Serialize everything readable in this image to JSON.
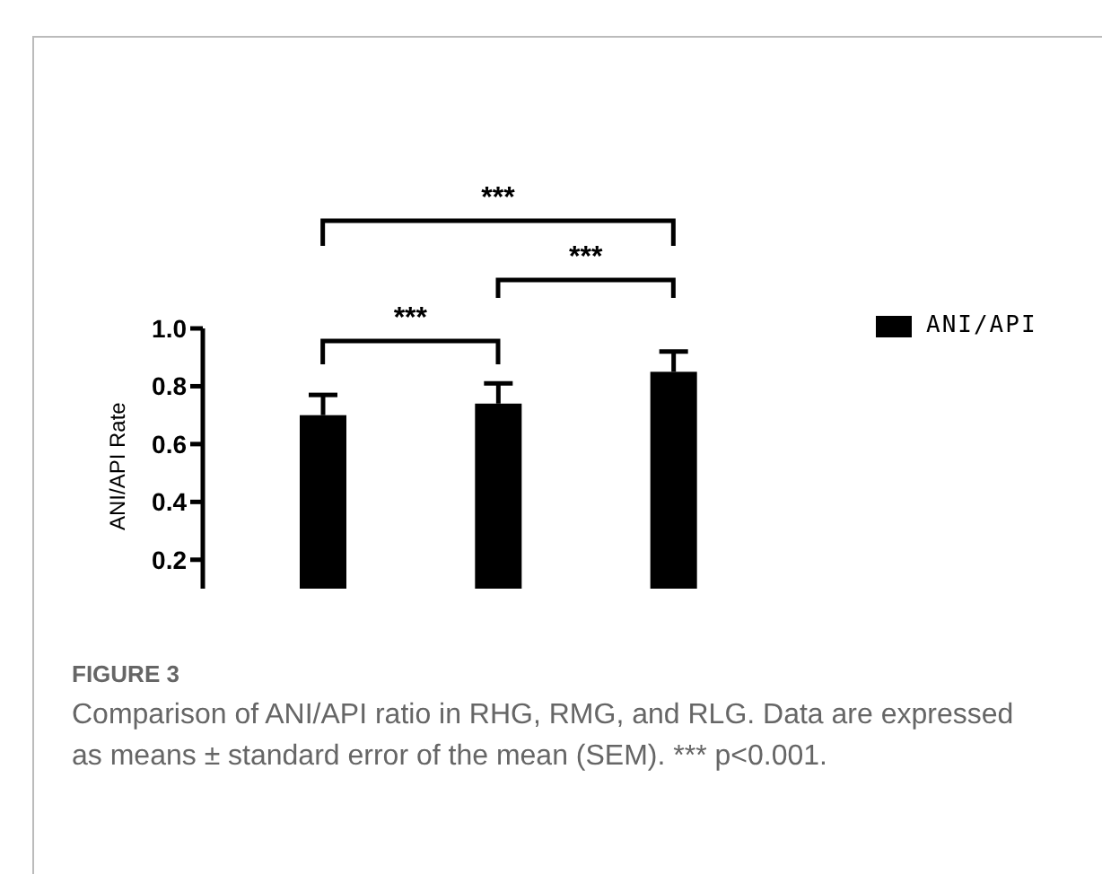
{
  "chart_data": {
    "type": "bar",
    "categories": [
      null,
      null,
      null
    ],
    "series": [
      {
        "name": "ANI/API",
        "color": "#000000",
        "values": [
          0.7,
          0.74,
          0.85
        ],
        "errors": [
          [
            0.7,
            0.77
          ],
          [
            0.74,
            0.81
          ],
          [
            0.85,
            0.92
          ]
        ]
      }
    ],
    "ylabel": "ANI/API Rate",
    "ylim": [
      0.1,
      1.0
    ],
    "yticks": [
      0.2,
      0.4,
      0.6,
      0.8,
      {
        "value": 1,
        "label": "1.0"
      }
    ],
    "grid": false,
    "legend": "top right",
    "annotations": [
      "***",
      "***",
      "***",
      "FIGURE 3",
      "Comparison of ANI/API ratio in RHG, RMG, and RLG. Data are expressed as means ± standard error of the mean (SEM). *** p<0.001."
    ]
  }
}
